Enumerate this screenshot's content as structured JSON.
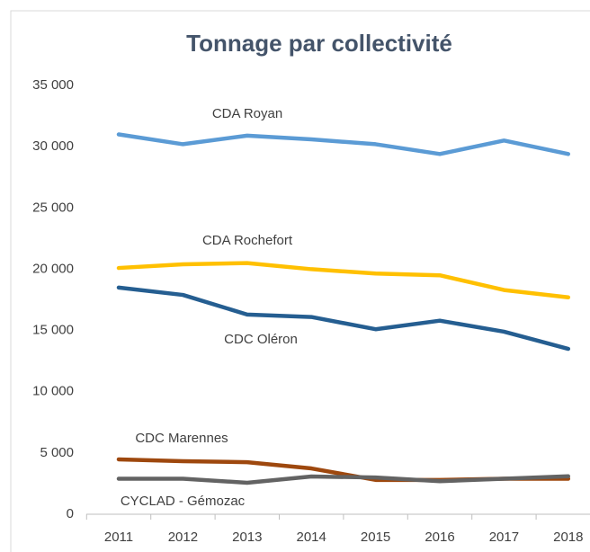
{
  "chart_data": {
    "type": "line",
    "title": "Tonnage par collectivité",
    "categories": [
      "2011",
      "2012",
      "2013",
      "2014",
      "2015",
      "2016",
      "2017",
      "2018"
    ],
    "series": [
      {
        "name": "CDA Royan",
        "color": "#5b9bd5",
        "values": [
          31000,
          30200,
          30900,
          30600,
          30200,
          29400,
          30500,
          29400
        ]
      },
      {
        "name": "CDA Rochefort",
        "color": "#ffc000",
        "values": [
          20100,
          20400,
          20500,
          20000,
          19650,
          19500,
          18300,
          17700
        ]
      },
      {
        "name": "CDC Oléron",
        "color": "#255e91",
        "values": [
          18500,
          17900,
          16300,
          16100,
          15100,
          15800,
          14900,
          13500
        ]
      },
      {
        "name": "CDC Marennes",
        "color": "#9e480e",
        "values": [
          4480,
          4330,
          4250,
          3740,
          2800,
          2800,
          2900,
          2900
        ]
      },
      {
        "name": "CYCLAD - Gémozac",
        "color": "#636363",
        "values": [
          2900,
          2900,
          2570,
          3080,
          3000,
          2700,
          2900,
          3100
        ]
      }
    ],
    "ylim": [
      0,
      35000
    ],
    "yticks": [
      0,
      {
        "value": 5000,
        "label": "5 000"
      },
      {
        "value": 10000,
        "label": "10 000"
      },
      {
        "value": 15000,
        "label": "15 000"
      },
      {
        "value": 20000,
        "label": "20 000"
      },
      {
        "value": 25000,
        "label": "25 000"
      },
      {
        "value": 30000,
        "label": "30 000"
      },
      {
        "value": 35000,
        "label": "35 000"
      }
    ],
    "grid": false
  }
}
